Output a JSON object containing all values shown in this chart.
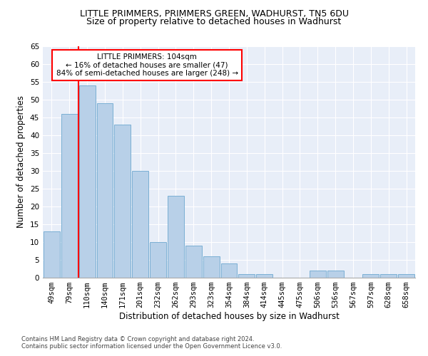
{
  "title1": "LITTLE PRIMMERS, PRIMMERS GREEN, WADHURST, TN5 6DU",
  "title2": "Size of property relative to detached houses in Wadhurst",
  "xlabel": "Distribution of detached houses by size in Wadhurst",
  "ylabel": "Number of detached properties",
  "annotation_line1": "LITTLE PRIMMERS: 104sqm",
  "annotation_line2": "← 16% of detached houses are smaller (47)",
  "annotation_line3": "84% of semi-detached houses are larger (248) →",
  "footer1": "Contains HM Land Registry data © Crown copyright and database right 2024.",
  "footer2": "Contains public sector information licensed under the Open Government Licence v3.0.",
  "bar_labels": [
    "49sqm",
    "79sqm",
    "110sqm",
    "140sqm",
    "171sqm",
    "201sqm",
    "232sqm",
    "262sqm",
    "293sqm",
    "323sqm",
    "354sqm",
    "384sqm",
    "414sqm",
    "445sqm",
    "475sqm",
    "506sqm",
    "536sqm",
    "567sqm",
    "597sqm",
    "628sqm",
    "658sqm"
  ],
  "bar_values": [
    13,
    46,
    54,
    49,
    43,
    30,
    10,
    23,
    9,
    6,
    4,
    1,
    1,
    0,
    0,
    2,
    2,
    0,
    1,
    1,
    1
  ],
  "bar_color": "#b8d0e8",
  "bar_edge_color": "#7aafd4",
  "red_line_index": 2,
  "ylim": [
    0,
    65
  ],
  "yticks": [
    0,
    5,
    10,
    15,
    20,
    25,
    30,
    35,
    40,
    45,
    50,
    55,
    60,
    65
  ],
  "background_color": "#e8eef8",
  "annotation_box_color": "white",
  "annotation_box_edge": "red",
  "red_line_color": "red",
  "title1_fontsize": 9,
  "title2_fontsize": 9,
  "xlabel_fontsize": 8.5,
  "ylabel_fontsize": 8.5,
  "tick_fontsize": 7.5,
  "annotation_fontsize": 7.5,
  "footer_fontsize": 6.0
}
